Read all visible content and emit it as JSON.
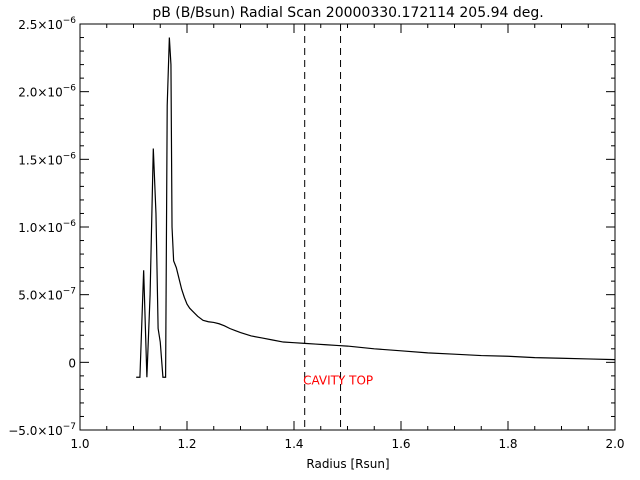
{
  "chart_data": {
    "type": "line",
    "title": "pB (B/Bsun) Radial Scan 20000330.172114 205.94 deg.",
    "xlabel": "Radius [Rsun]",
    "ylabel": "",
    "xlim": [
      1.0,
      2.0
    ],
    "ylim": [
      -5e-07,
      2.5e-06
    ],
    "grid": false,
    "x_ticks": [
      {
        "value": 1.0,
        "label": "1.0"
      },
      {
        "value": 1.2,
        "label": "1.2"
      },
      {
        "value": 1.4,
        "label": "1.4"
      },
      {
        "value": 1.6,
        "label": "1.6"
      },
      {
        "value": 1.8,
        "label": "1.8"
      },
      {
        "value": 2.0,
        "label": "2.0"
      }
    ],
    "y_ticks": [
      {
        "value": 2.5e-06,
        "mantissa": "2.5×10",
        "exp": "−6"
      },
      {
        "value": 2e-06,
        "mantissa": "2.0×10",
        "exp": "−6"
      },
      {
        "value": 1.5e-06,
        "mantissa": "1.5×10",
        "exp": "−6"
      },
      {
        "value": 1e-06,
        "mantissa": "1.0×10",
        "exp": "−6"
      },
      {
        "value": 5e-07,
        "mantissa": "5.0×10",
        "exp": "−7"
      },
      {
        "value": 0,
        "mantissa": "0",
        "exp": ""
      },
      {
        "value": -5e-07,
        "mantissa": "−5.0×10",
        "exp": "−7"
      }
    ],
    "series": [
      {
        "x": [
          1.105,
          1.112,
          1.119,
          1.125,
          1.131,
          1.137,
          1.142,
          1.146,
          1.15,
          1.155,
          1.16,
          1.163,
          1.167,
          1.17,
          1.172,
          1.175,
          1.18,
          1.185,
          1.19,
          1.195,
          1.2,
          1.205,
          1.21,
          1.22,
          1.23,
          1.24,
          1.25,
          1.26,
          1.27,
          1.28,
          1.29,
          1.3,
          1.32,
          1.34,
          1.36,
          1.38,
          1.4,
          1.42,
          1.44,
          1.46,
          1.48,
          1.5,
          1.55,
          1.6,
          1.65,
          1.7,
          1.75,
          1.8,
          1.85,
          1.9,
          1.95,
          2.0
        ],
        "y": [
          -1.1e-07,
          -1.1e-07,
          6.8e-07,
          -1.1e-07,
          5e-07,
          1.58e-06,
          1.1e-06,
          2.5e-07,
          1.5e-07,
          -1.1e-07,
          -1.1e-07,
          1.9e-06,
          2.4e-06,
          2.2e-06,
          1e-06,
          7.5e-07,
          7e-07,
          6.2e-07,
          5.4e-07,
          4.8e-07,
          4.3e-07,
          4e-07,
          3.8e-07,
          3.4e-07,
          3.1e-07,
          3e-07,
          2.95e-07,
          2.85e-07,
          2.7e-07,
          2.5e-07,
          2.35e-07,
          2.2e-07,
          1.95e-07,
          1.8e-07,
          1.65e-07,
          1.5e-07,
          1.45e-07,
          1.4e-07,
          1.35e-07,
          1.3e-07,
          1.25e-07,
          1.2e-07,
          1e-07,
          8.5e-08,
          7e-08,
          6e-08,
          5e-08,
          4.5e-08,
          3.5e-08,
          3e-08,
          2.5e-08,
          2e-08
        ]
      }
    ],
    "vlines": [
      {
        "x": 1.42,
        "style": "dashed"
      },
      {
        "x": 1.487,
        "style": "dashed"
      }
    ],
    "annotations": [
      {
        "text": "CAVITY TOP",
        "x": 1.417,
        "y": -1.2e-07,
        "color": "#ff0000"
      }
    ]
  }
}
